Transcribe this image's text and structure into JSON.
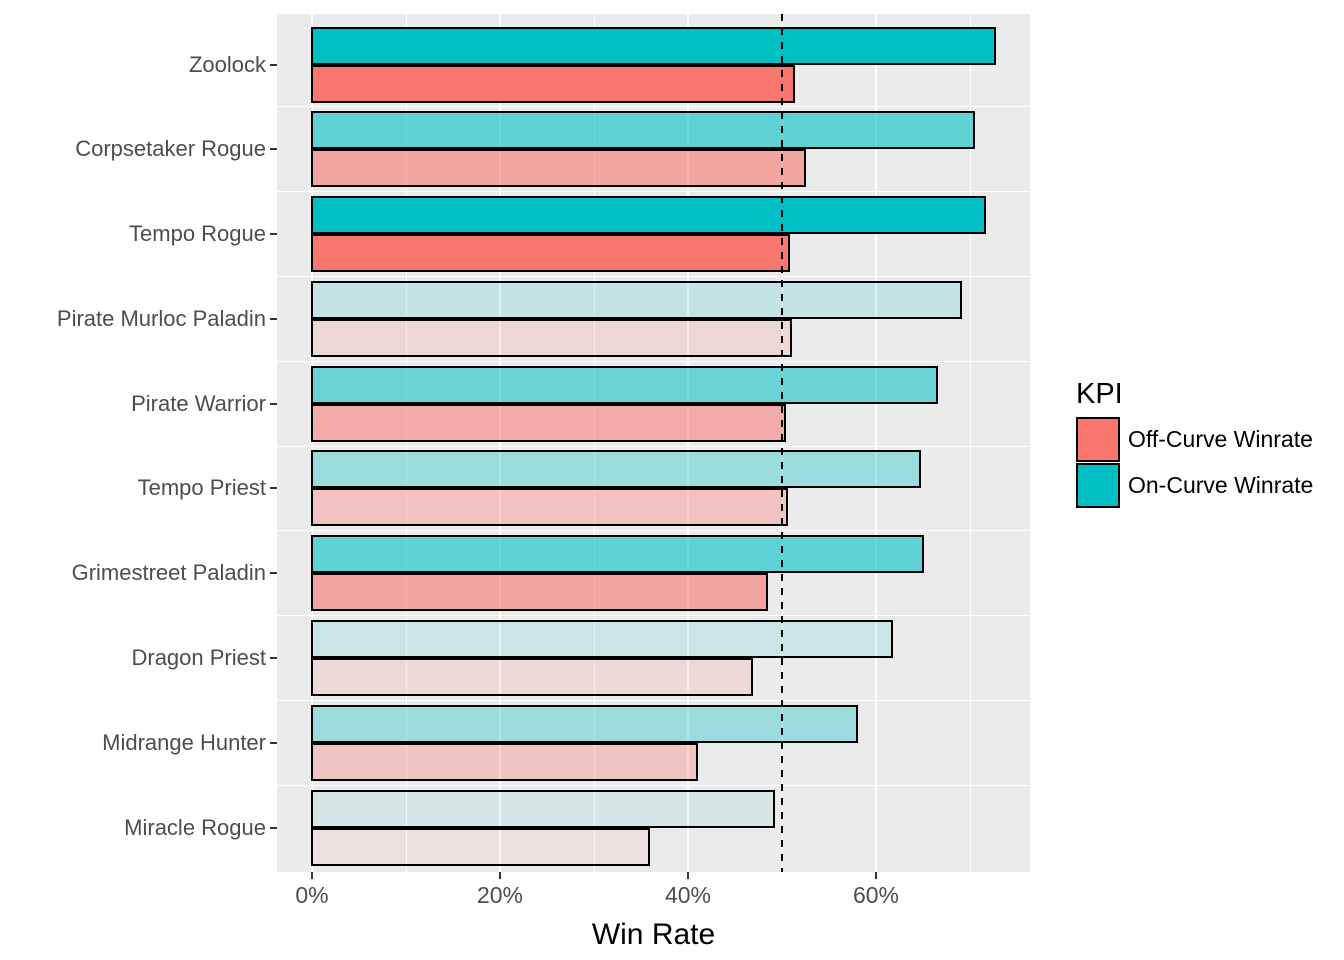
{
  "chart_data": {
    "type": "bar",
    "orientation": "horizontal",
    "xlabel": "Win Rate",
    "categories": [
      "Zoolock",
      "Corpsetaker Rogue",
      "Tempo Rogue",
      "Pirate Murloc Paladin",
      "Pirate Warrior",
      "Tempo Priest",
      "Grimestreet Paladin",
      "Dragon Priest",
      "Midrange Hunter",
      "Miracle Rogue"
    ],
    "series": [
      {
        "name": "On-Curve Winrate",
        "color": "#00BFC4",
        "position_in_group": "top",
        "values": [
          72.7,
          70.4,
          71.6,
          69.0,
          66.5,
          64.7,
          65.0,
          61.7,
          58.0,
          49.1
        ]
      },
      {
        "name": "Off-Curve Winrate",
        "color": "#F8766D",
        "position_in_group": "bottom",
        "values": [
          51.3,
          52.4,
          50.7,
          51.0,
          50.3,
          50.5,
          48.4,
          46.8,
          41.0,
          35.9
        ]
      }
    ],
    "bar_opacity_by_category": [
      1,
      0.6,
      1,
      0.17,
      0.55,
      0.34,
      0.6,
      0.15,
      0.33,
      0.09
    ],
    "x_ticks": [
      {
        "label": "0%",
        "value": 0
      },
      {
        "label": "20%",
        "value": 20
      },
      {
        "label": "40%",
        "value": 40
      },
      {
        "label": "60%",
        "value": 60
      }
    ],
    "x_minor_gridlines": [
      10,
      30,
      50,
      70
    ],
    "xlim": [
      -3.7,
      76.4
    ],
    "reference_line": {
      "value": 50,
      "style": "dashed",
      "color": "#000000"
    },
    "legend": {
      "title": "KPI",
      "position": "right",
      "entries": [
        {
          "label": "Off-Curve Winrate",
          "color": "#F8766D"
        },
        {
          "label": "On-Curve Winrate",
          "color": "#00BFC4"
        }
      ]
    },
    "style": {
      "panel_bg": "#EBEBEB",
      "grid_color": "#FFFFFF",
      "axis_text_color": "#4D4D4D",
      "bar_border_color": "#000000",
      "figure_bg": "#FFFFFF",
      "grid": "on"
    }
  }
}
